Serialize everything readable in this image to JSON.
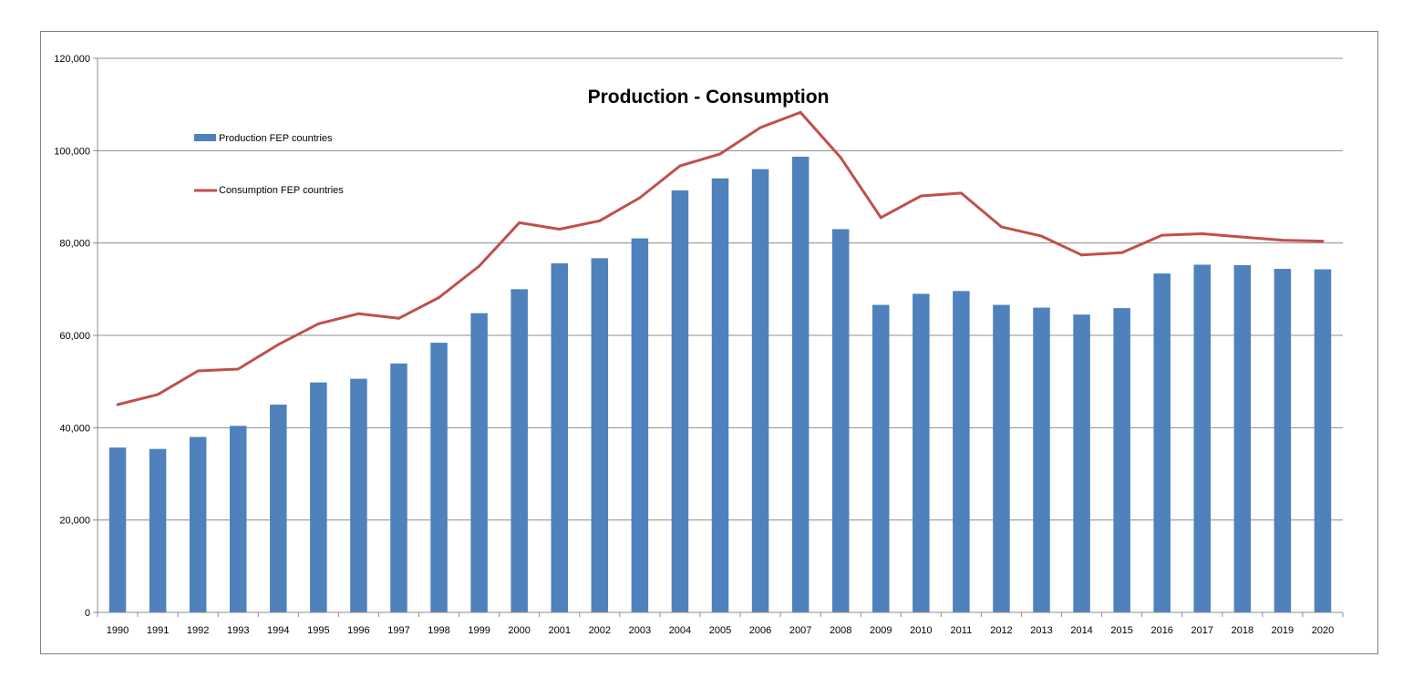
{
  "chart_data": {
    "type": "bar",
    "title": "Production - Consumption",
    "xlabel": "",
    "ylabel": "",
    "ylim": [
      0,
      120000
    ],
    "yticks": [
      "0",
      "20,000",
      "40,000",
      "60,000",
      "80,000",
      "100,000",
      "120,000"
    ],
    "ytick_values": [
      0,
      20000,
      40000,
      60000,
      80000,
      100000,
      120000
    ],
    "grid": true,
    "legend_placement": "top-left",
    "categories": [
      "1990",
      "1991",
      "1992",
      "1993",
      "1994",
      "1995",
      "1996",
      "1997",
      "1998",
      "1999",
      "2000",
      "2001",
      "2002",
      "2003",
      "2004",
      "2005",
      "2006",
      "2007",
      "2008",
      "2009",
      "2010",
      "2011",
      "2012",
      "2013",
      "2014",
      "2015",
      "2016",
      "2017",
      "2018",
      "2019",
      "2020"
    ],
    "series": [
      {
        "name": "Production FEP countries",
        "type": "bar",
        "color": "#4f81bd",
        "values": [
          35700,
          35400,
          38000,
          40400,
          45000,
          49800,
          50600,
          53900,
          58400,
          64800,
          70000,
          75600,
          76700,
          81000,
          91400,
          94000,
          96000,
          98700,
          83000,
          66600,
          69000,
          69600,
          66600,
          66000,
          64500,
          65900,
          73400,
          75300,
          75200,
          74400,
          74300
        ]
      },
      {
        "name": "Consumption FEP countries",
        "type": "line",
        "color": "#c0504d",
        "values": [
          45000,
          47200,
          52300,
          52700,
          58000,
          62500,
          64700,
          63700,
          68200,
          75000,
          84400,
          83000,
          84800,
          89800,
          96700,
          99300,
          105000,
          108300,
          98500,
          85500,
          90200,
          90800,
          83500,
          81500,
          77400,
          77900,
          81700,
          82000,
          81300,
          80600,
          80400
        ]
      }
    ]
  }
}
